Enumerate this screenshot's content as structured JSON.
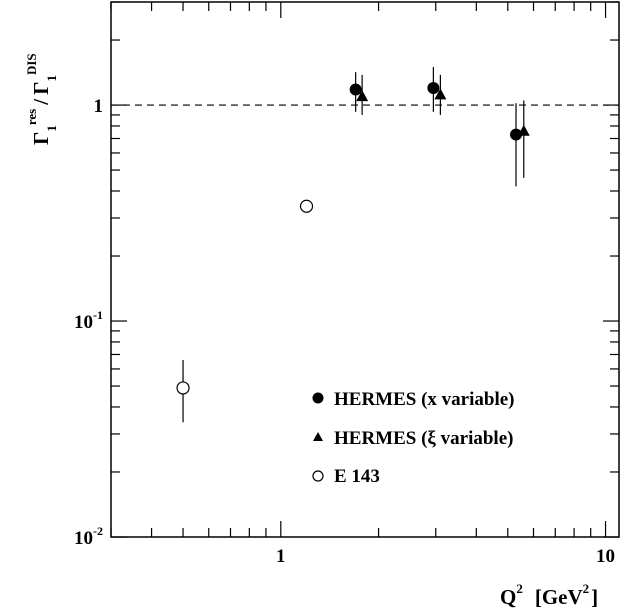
{
  "chart_data": {
    "type": "scatter",
    "title": "",
    "x_scale": "log",
    "y_scale": "log",
    "xlim": [
      0.3,
      11
    ],
    "ylim": [
      0.01,
      3
    ],
    "xlabel": {
      "main": "Q",
      "sup": "2",
      "unit": "[GeV",
      "unit_sup": "2",
      "unit_close": "]"
    },
    "ylabel": {
      "symbol": "Γ",
      "sub": "1",
      "sup_num": "res",
      "slash": "/",
      "sup_den": "DIS"
    },
    "x_ticks": [
      {
        "value": 1,
        "label": "1"
      },
      {
        "value": 10,
        "label": "10"
      }
    ],
    "y_ticks": [
      {
        "value": 0.01,
        "base": "10",
        "exp": "-2"
      },
      {
        "value": 0.1,
        "base": "10",
        "exp": "-1"
      },
      {
        "value": 1,
        "base": "1",
        "exp": ""
      }
    ],
    "reference_line": {
      "y": 1,
      "style": "dashed"
    },
    "series": [
      {
        "name": "HERMES (x variable)",
        "marker": "filled-circle",
        "points": [
          {
            "x": 1.7,
            "y": 1.18,
            "ylo": 0.93,
            "yhi": 1.42
          },
          {
            "x": 2.95,
            "y": 1.2,
            "ylo": 0.93,
            "yhi": 1.5
          },
          {
            "x": 5.3,
            "y": 0.73,
            "ylo": 0.42,
            "yhi": 1.02
          }
        ]
      },
      {
        "name": "HERMES (ξ variable)",
        "marker": "filled-triangle",
        "points": [
          {
            "x": 1.78,
            "y": 1.1,
            "ylo": 0.9,
            "yhi": 1.38
          },
          {
            "x": 3.1,
            "y": 1.12,
            "ylo": 0.9,
            "yhi": 1.38
          },
          {
            "x": 5.6,
            "y": 0.76,
            "ylo": 0.46,
            "yhi": 1.05
          }
        ]
      },
      {
        "name": "E 143",
        "marker": "open-circle",
        "points": [
          {
            "x": 0.5,
            "y": 0.049,
            "ylo": 0.034,
            "yhi": 0.066
          },
          {
            "x": 1.2,
            "y": 0.34,
            "ylo": 0.34,
            "yhi": 0.34
          }
        ]
      }
    ],
    "legend": {
      "placement": "bottom-right",
      "entries": [
        {
          "marker": "filled-circle",
          "label": "HERMES (x variable)"
        },
        {
          "marker": "filled-triangle",
          "label": "HERMES (ξ variable)"
        },
        {
          "marker": "open-circle",
          "label": "E 143"
        }
      ]
    }
  }
}
